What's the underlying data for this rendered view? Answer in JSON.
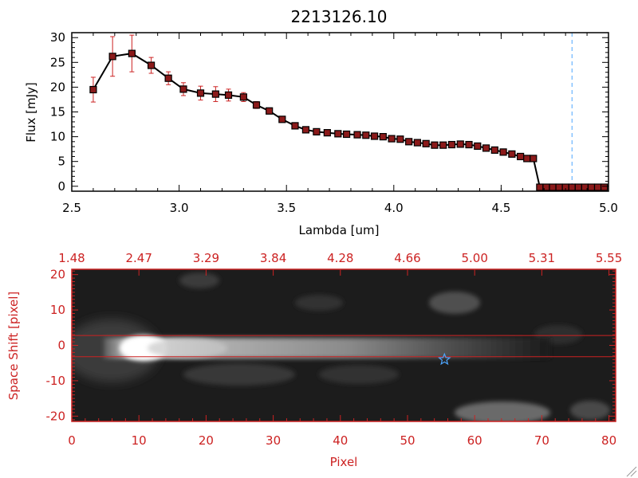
{
  "colors": {
    "spectrum_line": "#000000",
    "error_bar": "#cc2222",
    "marker_fill": "#8b1a1a",
    "marker_edge": "#000000",
    "dashed_line": "#4da6ff",
    "bottom_axes": "#cc2222",
    "star": "#4da6ff"
  },
  "chart_data": [
    {
      "type": "line",
      "title": "2213126.10",
      "xlabel": "Lambda [um]",
      "ylabel": "Flux [mJy]",
      "xlim": [
        2.5,
        5.0
      ],
      "ylim": [
        -1,
        31
      ],
      "xticks": [
        "2.5",
        "3.0",
        "3.5",
        "4.0",
        "4.5",
        "5.0"
      ],
      "xtick_values": [
        2.5,
        3.0,
        3.5,
        4.0,
        4.5,
        5.0
      ],
      "yticks": [
        "0",
        "5",
        "10",
        "15",
        "20",
        "25",
        "30"
      ],
      "ytick_values": [
        0,
        5,
        10,
        15,
        20,
        25,
        30
      ],
      "grid": false,
      "vline_dashed_x": 4.83,
      "hline_dashed_y": 0,
      "series": [
        {
          "x": [
            2.6,
            2.69,
            2.78,
            2.87,
            2.95,
            3.02,
            3.1,
            3.17,
            3.23,
            3.3,
            3.36,
            3.42,
            3.48,
            3.54,
            3.59,
            3.64,
            3.69,
            3.74,
            3.78,
            3.83,
            3.87,
            3.91,
            3.95,
            3.99,
            4.03,
            4.07,
            4.11,
            4.15,
            4.19,
            4.23,
            4.27,
            4.31,
            4.35,
            4.39,
            4.43,
            4.47,
            4.51,
            4.55,
            4.59,
            4.62,
            4.65,
            4.68,
            4.71,
            4.74,
            4.77,
            4.8,
            4.83,
            4.86,
            4.89,
            4.92,
            4.95,
            4.98
          ],
          "y": [
            19.5,
            26.2,
            26.8,
            24.4,
            21.8,
            19.6,
            18.8,
            18.6,
            18.4,
            18.0,
            16.4,
            15.2,
            13.5,
            12.2,
            11.4,
            11.0,
            10.8,
            10.6,
            10.5,
            10.4,
            10.3,
            10.1,
            10.0,
            9.6,
            9.5,
            9.0,
            8.8,
            8.6,
            8.3,
            8.3,
            8.4,
            8.5,
            8.4,
            8.1,
            7.7,
            7.3,
            6.9,
            6.5,
            6.0,
            5.6,
            5.6,
            -0.2,
            -0.2,
            -0.2,
            -0.2,
            -0.2,
            -0.2,
            -0.2,
            -0.2,
            -0.2,
            -0.2,
            -0.2
          ],
          "yerr": [
            2.5,
            4.0,
            3.7,
            1.6,
            1.3,
            1.3,
            1.4,
            1.5,
            1.2,
            0.9,
            0.7,
            0.6,
            0.5,
            0.4,
            0.4,
            0.3,
            0.3,
            0.3,
            0.3,
            0.3,
            0.3,
            0.3,
            0.3,
            0.3,
            0.3,
            0.3,
            0.3,
            0.3,
            0.3,
            0.3,
            0.3,
            0.3,
            0.3,
            0.3,
            0.3,
            0.3,
            0.3,
            0.3,
            0.3,
            0.3,
            0.3,
            0.0,
            0.0,
            0.0,
            0.0,
            0.0,
            0.0,
            0.0,
            0.0,
            0.0,
            0.0,
            0.0
          ]
        }
      ]
    },
    {
      "type": "heatmap",
      "xlabel": "Pixel",
      "ylabel": "Space Shift [pixel]",
      "xlim": [
        0,
        81
      ],
      "ylim": [
        -21.5,
        21.5
      ],
      "xticks": [
        "0",
        "10",
        "20",
        "30",
        "40",
        "50",
        "60",
        "70",
        "80"
      ],
      "xtick_values": [
        0,
        10,
        20,
        30,
        40,
        50,
        60,
        70,
        80
      ],
      "yticks": [
        "-20",
        "-10",
        "0",
        "10",
        "20"
      ],
      "ytick_values": [
        -20,
        -10,
        0,
        10,
        20
      ],
      "top_ticks": [
        "1.48",
        "2.47",
        "3.29",
        "3.84",
        "4.28",
        "4.66",
        "5.00",
        "5.31",
        "5.55"
      ],
      "top_tick_values": [
        0,
        10,
        20,
        30,
        40,
        50,
        60,
        70,
        80
      ],
      "hlines_y": [
        2.8,
        -3.2
      ],
      "star_marker": {
        "x": 55.5,
        "y": -4.0
      },
      "grid": false
    }
  ]
}
